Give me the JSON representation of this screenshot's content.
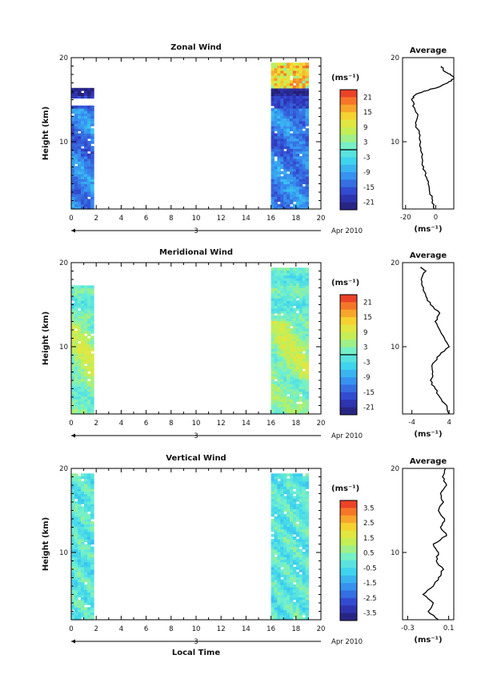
{
  "chart_data": [
    {
      "type": "heatmap",
      "title": "Zonal Wind",
      "ylabel": "Height (km)",
      "xlabel": "",
      "xlim": [
        0,
        20
      ],
      "ylim": [
        2,
        20
      ],
      "x_ticks": [
        "0",
        "2",
        "4",
        "6",
        "8",
        "10",
        "12",
        "14",
        "16",
        "18",
        "20"
      ],
      "y_ticks": [
        "10",
        "20"
      ],
      "date_label": "Apr 2010",
      "day_label": "3",
      "data_windows": [
        [
          0,
          1.8
        ],
        [
          16,
          19
        ]
      ],
      "colorbar": {
        "unit": "(ms⁻¹)",
        "range": [
          -24,
          24
        ],
        "ticks": [
          "21",
          "15",
          "9",
          "3",
          "-3",
          "-9",
          "-15",
          "-21"
        ],
        "zero_contour": 0
      },
      "profile": {
        "title": "Average",
        "xlabel": "(ms⁻¹)",
        "xlim": [
          -22,
          12
        ],
        "x_ticks": [
          "-20",
          "0"
        ],
        "y_ticks": [
          "10",
          "20"
        ],
        "height": [
          2,
          3,
          4,
          5,
          6,
          7,
          8,
          9,
          10,
          11,
          12,
          13,
          14,
          15,
          15.5,
          16,
          16.5,
          17,
          17.5,
          18,
          18.5,
          19
        ],
        "value": [
          -1,
          -2,
          -4,
          -5,
          -7,
          -8,
          -9,
          -10,
          -10,
          -11,
          -13,
          -12,
          -14,
          -16,
          -14,
          -8,
          2,
          8,
          12,
          10,
          5,
          4
        ]
      }
    },
    {
      "type": "heatmap",
      "title": "Meridional Wind",
      "ylabel": "Height (km)",
      "xlabel": "",
      "xlim": [
        0,
        20
      ],
      "ylim": [
        2,
        20
      ],
      "x_ticks": [
        "0",
        "2",
        "4",
        "6",
        "8",
        "10",
        "12",
        "14",
        "16",
        "18",
        "20"
      ],
      "y_ticks": [
        "10",
        "20"
      ],
      "date_label": "Apr 2010",
      "day_label": "3",
      "data_windows": [
        [
          0,
          1.8
        ],
        [
          16,
          19
        ]
      ],
      "colorbar": {
        "unit": "(ms⁻¹)",
        "range": [
          -24,
          24
        ],
        "ticks": [
          "21",
          "15",
          "9",
          "3",
          "-3",
          "-9",
          "-15",
          "-21"
        ],
        "zero_contour": 0
      },
      "profile": {
        "title": "Average",
        "xlabel": "(ms⁻¹)",
        "xlim": [
          -6,
          5
        ],
        "x_ticks": [
          "-4",
          "4"
        ],
        "y_ticks": [
          "10",
          "20"
        ],
        "height": [
          2,
          3,
          4,
          5,
          6,
          7,
          8,
          9,
          10,
          11,
          12,
          13,
          14,
          15,
          16,
          17,
          18,
          19,
          19.5
        ],
        "value": [
          4,
          3.5,
          2,
          1,
          0,
          0.5,
          0.5,
          2,
          4,
          3,
          2,
          1,
          2,
          0,
          -1,
          -1.5,
          -2,
          -1,
          -2
        ]
      }
    },
    {
      "type": "heatmap",
      "title": "Vertical Wind",
      "ylabel": "Height (km)",
      "xlabel": "Local Time",
      "xlim": [
        0,
        20
      ],
      "ylim": [
        2,
        20
      ],
      "x_ticks": [
        "0",
        "2",
        "4",
        "6",
        "8",
        "10",
        "12",
        "14",
        "16",
        "18",
        "20"
      ],
      "y_ticks": [
        "10",
        "20"
      ],
      "date_label": "Apr 2010",
      "day_label": "3",
      "data_windows": [
        [
          0,
          1.8
        ],
        [
          16,
          19
        ]
      ],
      "colorbar": {
        "unit": "(ms⁻¹)",
        "range": [
          -4,
          4
        ],
        "ticks": [
          "3.5",
          "2.5",
          "1.5",
          "0.5",
          "-0.5",
          "-1.5",
          "-2.5",
          "-3.5"
        ]
      },
      "profile": {
        "title": "Average",
        "xlabel": "(ms⁻¹)",
        "xlim": [
          -0.35,
          0.15
        ],
        "x_ticks": [
          "-0.3",
          "0.1"
        ],
        "y_ticks": [
          "10",
          "20"
        ],
        "height": [
          2,
          3,
          4,
          5,
          6,
          7,
          8,
          9,
          10,
          11,
          12,
          13,
          14,
          15,
          16,
          17,
          18,
          19,
          20
        ],
        "value": [
          0.0,
          -0.1,
          -0.05,
          -0.15,
          -0.05,
          0.0,
          0.05,
          -0.02,
          0.0,
          -0.05,
          0.08,
          0.02,
          0.06,
          0.0,
          0.05,
          0.02,
          0.08,
          0.04,
          0.07
        ]
      }
    }
  ]
}
